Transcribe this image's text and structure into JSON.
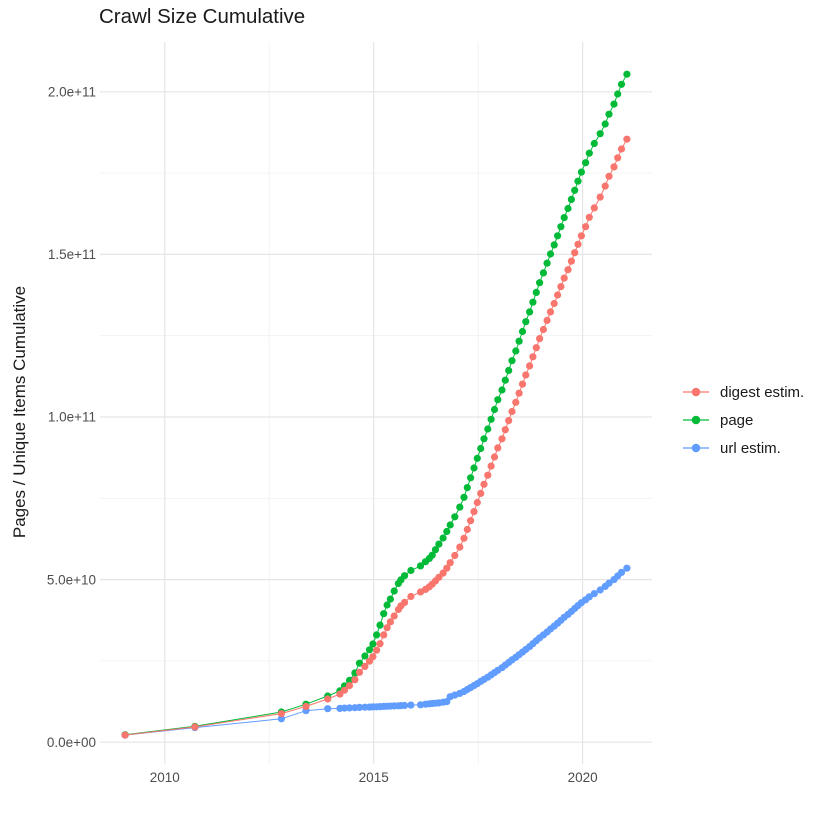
{
  "title": "Crawl Size Cumulative",
  "colors": {
    "background": "#FFFFFF",
    "axis_text": "#4D4D4D",
    "title_text": "#1A1A1A",
    "grid_major": "#E5E5E5",
    "grid_minor": "#F1F1F1"
  },
  "chart_data": {
    "type": "line",
    "title": "Crawl Size Cumulative",
    "xlabel": "",
    "ylabel": "Pages / Unique Items Cumulative",
    "grid": true,
    "legend_position": "right",
    "xlim": [
      2008.45,
      2021.66
    ],
    "y_unit_multiplier": 1000000000,
    "ylim_billions": [
      -6.7,
      215.3
    ],
    "x_ticks": [
      {
        "value": 2010,
        "label": "2010"
      },
      {
        "value": 2015,
        "label": "2015"
      },
      {
        "value": 2020,
        "label": "2020"
      }
    ],
    "x_minor_gridlines": [
      2012.5,
      2017.5
    ],
    "y_ticks": [
      {
        "value": 0,
        "label": "0.0e+00"
      },
      {
        "value": 50,
        "label": "5.0e+10"
      },
      {
        "value": 100,
        "label": "1.0e+11"
      },
      {
        "value": 150,
        "label": "1.5e+11"
      },
      {
        "value": 200,
        "label": "2.0e+11"
      }
    ],
    "y_minor_gridlines": [
      25,
      75,
      125,
      175
    ],
    "series": [
      {
        "name": "digest estim.",
        "color": "#F8766D",
        "points_year_billions": [
          [
            2009.05,
            2.2
          ],
          [
            2010.72,
            4.7
          ],
          [
            2012.79,
            8.8
          ],
          [
            2013.38,
            11.0
          ],
          [
            2013.9,
            13.3
          ],
          [
            2014.19,
            14.8
          ],
          [
            2014.3,
            16.0
          ],
          [
            2014.42,
            17.4
          ],
          [
            2014.55,
            19.2
          ],
          [
            2014.66,
            21.5
          ],
          [
            2014.79,
            23.3
          ],
          [
            2014.9,
            24.9
          ],
          [
            2014.98,
            26.3
          ],
          [
            2015.07,
            28.3
          ],
          [
            2015.15,
            30.3
          ],
          [
            2015.24,
            33.0
          ],
          [
            2015.32,
            35.2
          ],
          [
            2015.4,
            37.0
          ],
          [
            2015.49,
            38.8
          ],
          [
            2015.59,
            40.8
          ],
          [
            2015.65,
            41.9
          ],
          [
            2015.74,
            43.0
          ],
          [
            2015.89,
            44.8
          ],
          [
            2016.12,
            46.2
          ],
          [
            2016.24,
            47.0
          ],
          [
            2016.33,
            47.8
          ],
          [
            2016.4,
            48.6
          ],
          [
            2016.48,
            49.6
          ],
          [
            2016.56,
            50.7
          ],
          [
            2016.66,
            52.0
          ],
          [
            2016.75,
            53.5
          ],
          [
            2016.83,
            55.2
          ],
          [
            2016.94,
            57.4
          ],
          [
            2017.06,
            60.0
          ],
          [
            2017.16,
            62.7
          ],
          [
            2017.24,
            65.4
          ],
          [
            2017.32,
            68.1
          ],
          [
            2017.4,
            70.9
          ],
          [
            2017.48,
            73.7
          ],
          [
            2017.56,
            76.5
          ],
          [
            2017.64,
            79.3
          ],
          [
            2017.73,
            82.1
          ],
          [
            2017.81,
            84.9
          ],
          [
            2017.89,
            87.7
          ],
          [
            2017.97,
            90.5
          ],
          [
            2018.07,
            93.3
          ],
          [
            2018.15,
            96.1
          ],
          [
            2018.23,
            98.9
          ],
          [
            2018.31,
            101.7
          ],
          [
            2018.4,
            104.5
          ],
          [
            2018.48,
            107.3
          ],
          [
            2018.56,
            110.1
          ],
          [
            2018.64,
            112.9
          ],
          [
            2018.73,
            115.7
          ],
          [
            2018.81,
            118.5
          ],
          [
            2018.89,
            121.3
          ],
          [
            2018.97,
            124.1
          ],
          [
            2019.06,
            126.9
          ],
          [
            2019.15,
            129.7
          ],
          [
            2019.23,
            132.3
          ],
          [
            2019.32,
            134.9
          ],
          [
            2019.4,
            137.5
          ],
          [
            2019.48,
            140.1
          ],
          [
            2019.56,
            142.7
          ],
          [
            2019.65,
            145.3
          ],
          [
            2019.73,
            147.9
          ],
          [
            2019.81,
            150.5
          ],
          [
            2019.89,
            153.1
          ],
          [
            2019.97,
            155.7
          ],
          [
            2020.07,
            158.5
          ],
          [
            2020.16,
            161.4
          ],
          [
            2020.28,
            164.3
          ],
          [
            2020.42,
            167.6
          ],
          [
            2020.54,
            171.0
          ],
          [
            2020.63,
            174.0
          ],
          [
            2020.75,
            176.9
          ],
          [
            2020.84,
            179.7
          ],
          [
            2020.93,
            182.4
          ],
          [
            2021.06,
            185.4
          ]
        ]
      },
      {
        "name": "page",
        "color": "#00BA38",
        "points_year_billions": [
          [
            2009.05,
            2.3
          ],
          [
            2010.72,
            4.9
          ],
          [
            2012.79,
            9.3
          ],
          [
            2013.38,
            11.7
          ],
          [
            2013.9,
            14.2
          ],
          [
            2014.19,
            15.8
          ],
          [
            2014.3,
            17.3
          ],
          [
            2014.42,
            19.0
          ],
          [
            2014.55,
            21.3
          ],
          [
            2014.66,
            24.3
          ],
          [
            2014.79,
            26.5
          ],
          [
            2014.9,
            28.4
          ],
          [
            2014.98,
            30.2
          ],
          [
            2015.07,
            33.0
          ],
          [
            2015.15,
            36.0
          ],
          [
            2015.24,
            39.5
          ],
          [
            2015.32,
            42.2
          ],
          [
            2015.4,
            44.0
          ],
          [
            2015.49,
            46.5
          ],
          [
            2015.59,
            48.8
          ],
          [
            2015.65,
            49.9
          ],
          [
            2015.74,
            51.2
          ],
          [
            2015.89,
            52.8
          ],
          [
            2016.12,
            54.2
          ],
          [
            2016.24,
            55.5
          ],
          [
            2016.33,
            56.5
          ],
          [
            2016.4,
            57.5
          ],
          [
            2016.48,
            59.2
          ],
          [
            2016.56,
            60.9
          ],
          [
            2016.66,
            62.8
          ],
          [
            2016.75,
            64.8
          ],
          [
            2016.83,
            66.8
          ],
          [
            2016.94,
            69.3
          ],
          [
            2017.06,
            72.3
          ],
          [
            2017.16,
            75.3
          ],
          [
            2017.24,
            78.3
          ],
          [
            2017.32,
            81.3
          ],
          [
            2017.4,
            84.3
          ],
          [
            2017.48,
            87.3
          ],
          [
            2017.56,
            90.3
          ],
          [
            2017.64,
            93.3
          ],
          [
            2017.73,
            96.3
          ],
          [
            2017.81,
            99.3
          ],
          [
            2017.89,
            102.3
          ],
          [
            2017.97,
            105.3
          ],
          [
            2018.07,
            108.3
          ],
          [
            2018.15,
            111.3
          ],
          [
            2018.23,
            114.3
          ],
          [
            2018.31,
            117.3
          ],
          [
            2018.4,
            120.3
          ],
          [
            2018.48,
            123.3
          ],
          [
            2018.56,
            126.3
          ],
          [
            2018.64,
            129.3
          ],
          [
            2018.73,
            132.3
          ],
          [
            2018.81,
            135.3
          ],
          [
            2018.89,
            138.3
          ],
          [
            2018.97,
            141.3
          ],
          [
            2019.06,
            144.3
          ],
          [
            2019.15,
            147.3
          ],
          [
            2019.23,
            150.1
          ],
          [
            2019.32,
            152.9
          ],
          [
            2019.4,
            155.7
          ],
          [
            2019.48,
            158.5
          ],
          [
            2019.56,
            161.3
          ],
          [
            2019.65,
            164.1
          ],
          [
            2019.73,
            166.9
          ],
          [
            2019.81,
            169.7
          ],
          [
            2019.89,
            172.5
          ],
          [
            2019.97,
            175.3
          ],
          [
            2020.07,
            178.2
          ],
          [
            2020.16,
            181.1
          ],
          [
            2020.28,
            184.1
          ],
          [
            2020.42,
            187.1
          ],
          [
            2020.54,
            190.1
          ],
          [
            2020.63,
            193.1
          ],
          [
            2020.75,
            196.2
          ],
          [
            2020.84,
            199.3
          ],
          [
            2020.93,
            202.3
          ],
          [
            2021.06,
            205.4
          ]
        ]
      },
      {
        "name": "url estim.",
        "color": "#619CFF",
        "points_year_billions": [
          [
            2009.05,
            2.2
          ],
          [
            2010.72,
            4.5
          ],
          [
            2012.79,
            7.2
          ],
          [
            2013.38,
            9.7
          ],
          [
            2013.9,
            10.3
          ],
          [
            2014.19,
            10.4
          ],
          [
            2014.3,
            10.5
          ],
          [
            2014.42,
            10.55
          ],
          [
            2014.55,
            10.6
          ],
          [
            2014.66,
            10.7
          ],
          [
            2014.79,
            10.75
          ],
          [
            2014.9,
            10.8
          ],
          [
            2014.98,
            10.85
          ],
          [
            2015.07,
            10.9
          ],
          [
            2015.15,
            10.95
          ],
          [
            2015.24,
            11.0
          ],
          [
            2015.32,
            11.05
          ],
          [
            2015.4,
            11.1
          ],
          [
            2015.49,
            11.15
          ],
          [
            2015.59,
            11.2
          ],
          [
            2015.65,
            11.25
          ],
          [
            2015.74,
            11.3
          ],
          [
            2015.89,
            11.4
          ],
          [
            2016.12,
            11.5
          ],
          [
            2016.24,
            11.7
          ],
          [
            2016.33,
            11.8
          ],
          [
            2016.4,
            11.9
          ],
          [
            2016.48,
            12.0
          ],
          [
            2016.56,
            12.1
          ],
          [
            2016.66,
            12.3
          ],
          [
            2016.75,
            12.5
          ],
          [
            2016.83,
            14.0
          ],
          [
            2016.94,
            14.5
          ],
          [
            2017.06,
            15.0
          ],
          [
            2017.16,
            15.6
          ],
          [
            2017.24,
            16.2
          ],
          [
            2017.32,
            16.8
          ],
          [
            2017.4,
            17.4
          ],
          [
            2017.48,
            18.0
          ],
          [
            2017.56,
            18.7
          ],
          [
            2017.64,
            19.3
          ],
          [
            2017.73,
            20.0
          ],
          [
            2017.81,
            20.7
          ],
          [
            2017.89,
            21.4
          ],
          [
            2017.97,
            22.1
          ],
          [
            2018.07,
            22.9
          ],
          [
            2018.15,
            23.7
          ],
          [
            2018.23,
            24.5
          ],
          [
            2018.31,
            25.3
          ],
          [
            2018.4,
            26.1
          ],
          [
            2018.48,
            26.9
          ],
          [
            2018.56,
            27.7
          ],
          [
            2018.64,
            28.5
          ],
          [
            2018.73,
            29.4
          ],
          [
            2018.81,
            30.3
          ],
          [
            2018.89,
            31.2
          ],
          [
            2018.97,
            32.1
          ],
          [
            2019.06,
            33.0
          ],
          [
            2019.15,
            33.9
          ],
          [
            2019.23,
            34.8
          ],
          [
            2019.32,
            35.7
          ],
          [
            2019.4,
            36.6
          ],
          [
            2019.48,
            37.5
          ],
          [
            2019.56,
            38.4
          ],
          [
            2019.65,
            39.3
          ],
          [
            2019.73,
            40.2
          ],
          [
            2019.81,
            41.1
          ],
          [
            2019.89,
            42.0
          ],
          [
            2019.97,
            42.9
          ],
          [
            2020.07,
            43.8
          ],
          [
            2020.16,
            44.7
          ],
          [
            2020.28,
            45.7
          ],
          [
            2020.42,
            46.8
          ],
          [
            2020.54,
            47.9
          ],
          [
            2020.63,
            48.9
          ],
          [
            2020.75,
            50.0
          ],
          [
            2020.84,
            51.1
          ],
          [
            2020.93,
            52.2
          ],
          [
            2021.06,
            53.5
          ]
        ]
      }
    ]
  },
  "legend": {
    "items": [
      {
        "label": "digest estim.",
        "color": "#F8766D"
      },
      {
        "label": "page",
        "color": "#00BA38"
      },
      {
        "label": "url estim.",
        "color": "#619CFF"
      }
    ]
  }
}
